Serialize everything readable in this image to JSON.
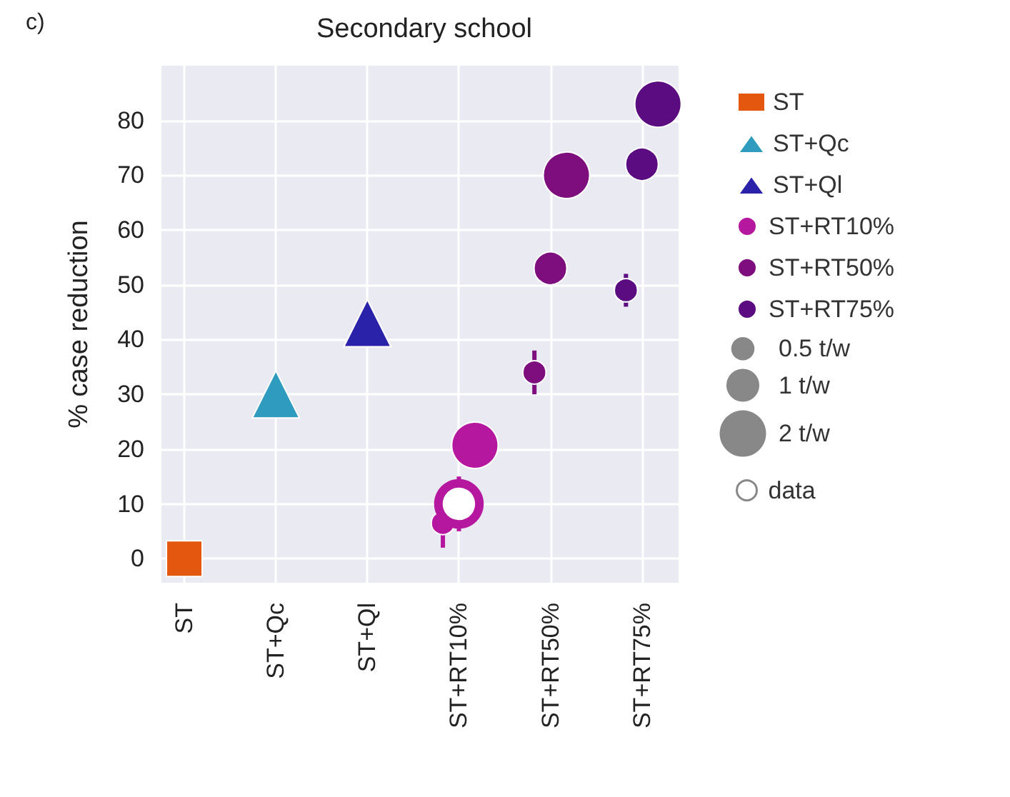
{
  "chart_data": {
    "type": "bubble",
    "title": "Secondary school",
    "ylabel": "% case reduction",
    "annotations": [
      "c)"
    ],
    "categories": [
      "ST",
      "ST+Qc",
      "ST+Ql",
      "ST+RT10%",
      "ST+RT50%",
      "ST+RT75%"
    ],
    "ylim": [
      -4.4,
      90
    ],
    "yticks": [
      0,
      10,
      20,
      30,
      40,
      50,
      60,
      70,
      80
    ],
    "grid": true,
    "legend": "right",
    "size_legend": [
      {
        "value": 0.5,
        "label": "0.5 t/w"
      },
      {
        "value": 1,
        "label": "1 t/w"
      },
      {
        "value": 2,
        "label": "2 t/w"
      }
    ],
    "series": [
      {
        "name": "ST",
        "color": "#e4570f",
        "marker": "square",
        "x": [
          "ST"
        ],
        "values": [
          0
        ]
      },
      {
        "name": "ST+Qc",
        "color": "#2e9bbf",
        "marker": "triangle",
        "x": [
          "ST+Qc"
        ],
        "values": [
          30
        ]
      },
      {
        "name": "ST+Ql",
        "color": "#2a22a8",
        "marker": "triangle",
        "x": [
          "ST+Ql"
        ],
        "values": [
          43
        ]
      },
      {
        "name": "ST+RT10%",
        "color": "#b5179e",
        "marker": "circle",
        "x": [
          "ST+RT10%",
          "ST+RT10%"
        ],
        "values": [
          6.5,
          20.7
        ],
        "sizes": [
          0.5,
          2
        ],
        "errors": [
          [
            2,
            11
          ],
          null
        ]
      },
      {
        "name": "ST+RT50%",
        "color": "#7e0e7e",
        "marker": "circle",
        "x": [
          "ST+RT50%",
          "ST+RT50%",
          "ST+RT50%"
        ],
        "values": [
          34,
          53,
          70
        ],
        "sizes": [
          0.5,
          1,
          2
        ],
        "errors": [
          [
            30,
            38
          ],
          null,
          null
        ]
      },
      {
        "name": "ST+RT75%",
        "color": "#5a0c80",
        "marker": "circle",
        "x": [
          "ST+RT75%",
          "ST+RT75%",
          "ST+RT75%"
        ],
        "values": [
          49,
          72,
          83
        ],
        "sizes": [
          0.5,
          1,
          2
        ],
        "errors": [
          [
            46,
            52
          ],
          null,
          null
        ]
      },
      {
        "name": "data",
        "type": "scatter",
        "color": "#b5179e",
        "marker": "circle",
        "x": [
          "ST+RT10%"
        ],
        "values": [
          10
        ],
        "errors": [
          [
            5,
            15
          ]
        ]
      }
    ]
  }
}
